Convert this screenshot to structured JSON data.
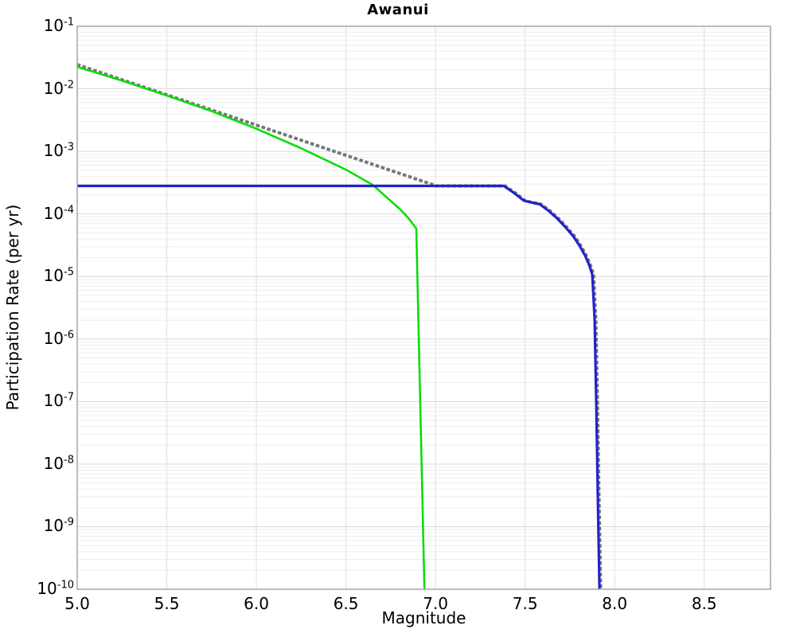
{
  "chart_data": {
    "type": "line",
    "title": "Awanui",
    "xlabel": "Magnitude",
    "ylabel": "Participation Rate (per yr)",
    "xlim": [
      5.0,
      8.87
    ],
    "y_log_scale": true,
    "ylim_exponents": [
      -1,
      -10
    ],
    "grid": {
      "vertical": true,
      "horizontal_major": true,
      "horizontal_minor": true
    },
    "legend": "none",
    "x_ticks": [
      {
        "label": "5.0",
        "value": 5.0
      },
      {
        "label": "5.5",
        "value": 5.5
      },
      {
        "label": "6.0",
        "value": 6.0
      },
      {
        "label": "6.5",
        "value": 6.5
      },
      {
        "label": "7.0",
        "value": 7.0
      },
      {
        "label": "7.5",
        "value": 7.5
      },
      {
        "label": "8.0",
        "value": 8.0
      },
      {
        "label": "8.5",
        "value": 8.5
      }
    ],
    "y_ticks": [
      {
        "mantissa": "10",
        "exponent": "-1",
        "value": 0.1
      },
      {
        "mantissa": "10",
        "exponent": "-2",
        "value": 0.01
      },
      {
        "mantissa": "10",
        "exponent": "-3",
        "value": 0.001
      },
      {
        "mantissa": "10",
        "exponent": "-4",
        "value": 0.0001
      },
      {
        "mantissa": "10",
        "exponent": "-5",
        "value": 1e-05
      },
      {
        "mantissa": "10",
        "exponent": "-6",
        "value": 1e-06
      },
      {
        "mantissa": "10",
        "exponent": "-7",
        "value": 1e-07
      },
      {
        "mantissa": "10",
        "exponent": "-8",
        "value": 1e-08
      },
      {
        "mantissa": "10",
        "exponent": "-9",
        "value": 1e-09
      },
      {
        "mantissa": "10",
        "exponent": "-10",
        "value": 1e-10
      }
    ],
    "series": [
      {
        "name": "mean-dotted",
        "color": "#777777",
        "style": "dotted",
        "width": 4.0,
        "points": [
          [
            5.0,
            0.024
          ],
          [
            7.0,
            0.00028
          ],
          [
            7.381,
            0.00028
          ],
          [
            7.435,
            0.00022
          ],
          [
            7.493,
            0.000163
          ],
          [
            7.524,
            0.000155
          ],
          [
            7.582,
            0.000143
          ],
          [
            7.635,
            0.00011
          ],
          [
            7.68,
            8.4e-05
          ],
          [
            7.724,
            6.2e-05
          ],
          [
            7.769,
            4.4e-05
          ],
          [
            7.804,
            3.1e-05
          ],
          [
            7.835,
            2.15e-05
          ],
          [
            7.857,
            1.55e-05
          ],
          [
            7.875,
            1.07e-05
          ],
          [
            7.888,
            2.1e-06
          ],
          [
            7.897,
            1.1e-07
          ],
          [
            7.906,
            3.2e-09
          ],
          [
            7.915,
            1e-10
          ]
        ]
      },
      {
        "name": "green-curve",
        "color": "#00dd00",
        "style": "solid",
        "width": 2.5,
        "points": [
          [
            5.0,
            0.0225
          ],
          [
            5.25,
            0.0135
          ],
          [
            5.5,
            0.0078
          ],
          [
            5.75,
            0.0044
          ],
          [
            6.0,
            0.0023
          ],
          [
            6.25,
            0.00112
          ],
          [
            6.5,
            0.00051
          ],
          [
            6.65,
            0.00029
          ],
          [
            6.8,
            0.00012
          ],
          [
            6.85,
            8.5e-05
          ],
          [
            6.893,
            5.8e-05
          ],
          [
            6.938,
            1e-10
          ]
        ]
      },
      {
        "name": "blue-curve",
        "color": "#2222cc",
        "style": "solid",
        "width": 3.2,
        "points": [
          [
            5.0,
            0.00028
          ],
          [
            7.381,
            0.00028
          ],
          [
            7.435,
            0.00022
          ],
          [
            7.493,
            0.000163
          ],
          [
            7.524,
            0.000155
          ],
          [
            7.582,
            0.000143
          ],
          [
            7.635,
            0.00011
          ],
          [
            7.68,
            8.4e-05
          ],
          [
            7.724,
            6.2e-05
          ],
          [
            7.769,
            4.4e-05
          ],
          [
            7.804,
            3.1e-05
          ],
          [
            7.835,
            2.15e-05
          ],
          [
            7.857,
            1.55e-05
          ],
          [
            7.875,
            1.07e-05
          ],
          [
            7.888,
            2.1e-06
          ],
          [
            7.897,
            1.1e-07
          ],
          [
            7.906,
            3.2e-09
          ],
          [
            7.915,
            1e-10
          ]
        ]
      }
    ],
    "style_colors": {
      "grid_major": "#d6d6d6",
      "grid_minor": "#ededed",
      "grid_vertical": "#e0e0e0",
      "plot_border": "#a6a6a6",
      "text": "#000000"
    }
  }
}
